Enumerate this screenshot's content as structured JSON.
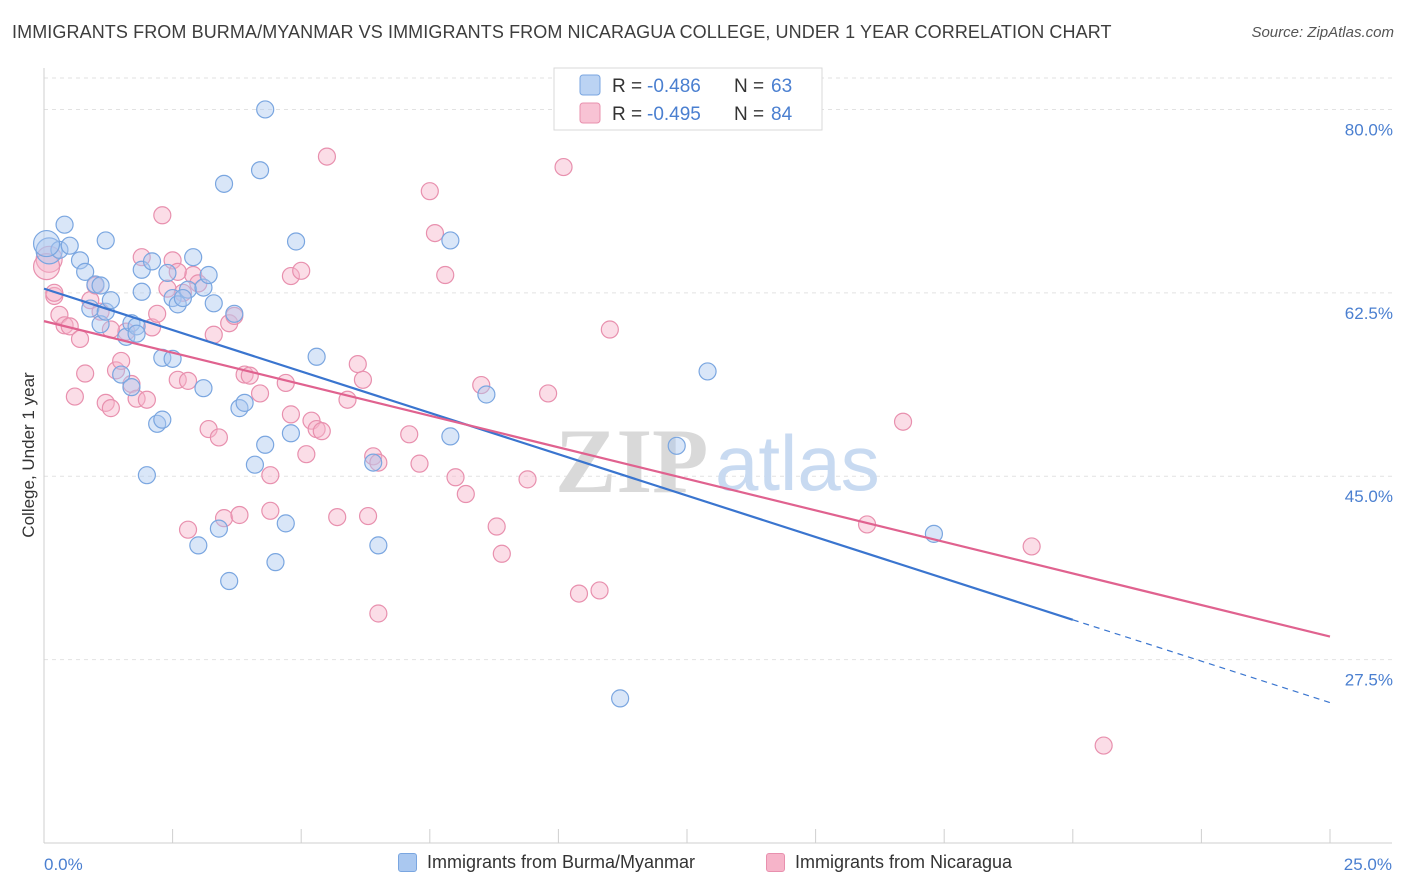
{
  "title": "IMMIGRANTS FROM BURMA/MYANMAR VS IMMIGRANTS FROM NICARAGUA COLLEGE, UNDER 1 YEAR CORRELATION CHART",
  "source": "Source: ZipAtlas.com",
  "watermark": "ZIPatlas",
  "colors": {
    "blue": "#4a7fd0",
    "blue_fill": "#aac8f0",
    "pink": "#e0628f",
    "pink_fill": "#f6b4c9"
  },
  "legend_top": [
    {
      "r_label": "R =",
      "r_value": "-0.486",
      "n_label": "N =",
      "n_value": "63"
    },
    {
      "r_label": "R =",
      "r_value": "-0.495",
      "n_label": "N =",
      "n_value": "84"
    }
  ],
  "legend_bottom": [
    "Immigrants from Burma/Myanmar",
    "Immigrants from Nicaragua"
  ],
  "chart_data": {
    "type": "scatter",
    "title": "IMMIGRANTS FROM BURMA/MYANMAR VS IMMIGRANTS FROM NICARAGUA COLLEGE, UNDER 1 YEAR CORRELATION CHART",
    "xlabel": "",
    "ylabel": "College, Under 1 year",
    "xlim": [
      0,
      25
    ],
    "ylim": [
      10,
      83
    ],
    "x_ticks": [
      "0.0%",
      "25.0%"
    ],
    "y_ticks": [
      {
        "value": 27.5,
        "label": "27.5%"
      },
      {
        "value": 45.0,
        "label": "45.0%"
      },
      {
        "value": 62.5,
        "label": "62.5%"
      },
      {
        "value": 80.0,
        "label": "80.0%"
      }
    ],
    "grid": true,
    "legend_position": "top-center",
    "series": [
      {
        "name": "Immigrants from Burma/Myanmar",
        "color": "#4a7fd0",
        "r": -0.486,
        "n": 63,
        "trend": {
          "x0": 0,
          "y0": 62.9,
          "x1": 20,
          "y1": 31.3,
          "dashed_to_x": 25,
          "dashed_to_y": 23.4
        },
        "points": [
          [
            0.1,
            66.5
          ],
          [
            0.3,
            66.6
          ],
          [
            0.4,
            69.0
          ],
          [
            0.5,
            67.0
          ],
          [
            0.7,
            65.6
          ],
          [
            0.8,
            64.5
          ],
          [
            0.9,
            61.0
          ],
          [
            1.0,
            63.3
          ],
          [
            1.1,
            59.5
          ],
          [
            1.1,
            63.2
          ],
          [
            1.2,
            60.7
          ],
          [
            1.2,
            67.5
          ],
          [
            1.5,
            54.7
          ],
          [
            1.6,
            58.3
          ],
          [
            1.7,
            59.6
          ],
          [
            1.8,
            59.3
          ],
          [
            1.7,
            53.5
          ],
          [
            1.9,
            64.7
          ],
          [
            1.9,
            62.6
          ],
          [
            2.0,
            45.1
          ],
          [
            2.1,
            65.5
          ],
          [
            2.2,
            50.0
          ],
          [
            2.3,
            56.3
          ],
          [
            2.3,
            50.4
          ],
          [
            2.4,
            64.4
          ],
          [
            2.5,
            56.2
          ],
          [
            2.5,
            62.0
          ],
          [
            2.6,
            61.4
          ],
          [
            2.8,
            62.8
          ],
          [
            2.9,
            65.9
          ],
          [
            3.1,
            53.4
          ],
          [
            3.0,
            38.4
          ],
          [
            3.1,
            63.0
          ],
          [
            3.2,
            64.2
          ],
          [
            3.3,
            61.5
          ],
          [
            3.4,
            40.0
          ],
          [
            3.5,
            72.9
          ],
          [
            3.6,
            35.0
          ],
          [
            3.8,
            51.5
          ],
          [
            3.9,
            52.0
          ],
          [
            4.1,
            46.1
          ],
          [
            4.2,
            74.2
          ],
          [
            4.3,
            80.0
          ],
          [
            4.3,
            48.0
          ],
          [
            4.5,
            36.8
          ],
          [
            4.7,
            40.5
          ],
          [
            4.8,
            49.1
          ],
          [
            4.9,
            67.4
          ],
          [
            5.3,
            56.4
          ],
          [
            6.4,
            46.3
          ],
          [
            6.5,
            38.4
          ],
          [
            7.9,
            67.5
          ],
          [
            7.9,
            48.8
          ],
          [
            8.6,
            52.8
          ],
          [
            12.3,
            47.9
          ],
          [
            12.9,
            55.0
          ],
          [
            17.3,
            39.5
          ],
          [
            11.2,
            23.8
          ],
          [
            0.05,
            67.2
          ],
          [
            3.7,
            60.5
          ],
          [
            2.7,
            62.0
          ],
          [
            1.3,
            61.8
          ],
          [
            1.8,
            58.6
          ]
        ]
      },
      {
        "name": "Immigrants from Nicaragua",
        "color": "#e0628f",
        "r": -0.495,
        "n": 84,
        "trend": {
          "x0": 0,
          "y0": 59.8,
          "x1": 25,
          "y1": 29.7
        },
        "points": [
          [
            0.1,
            65.7
          ],
          [
            0.2,
            62.2
          ],
          [
            0.3,
            60.4
          ],
          [
            0.4,
            59.4
          ],
          [
            0.5,
            59.3
          ],
          [
            0.6,
            52.6
          ],
          [
            0.7,
            58.1
          ],
          [
            0.8,
            54.8
          ],
          [
            0.9,
            61.8
          ],
          [
            1.0,
            63.2
          ],
          [
            1.1,
            60.7
          ],
          [
            1.2,
            52.0
          ],
          [
            1.3,
            51.5
          ],
          [
            1.4,
            55.1
          ],
          [
            1.5,
            56.0
          ],
          [
            1.6,
            58.8
          ],
          [
            1.7,
            53.8
          ],
          [
            1.8,
            52.4
          ],
          [
            1.9,
            65.9
          ],
          [
            2.0,
            52.3
          ],
          [
            2.1,
            59.2
          ],
          [
            2.2,
            60.5
          ],
          [
            2.3,
            69.9
          ],
          [
            2.4,
            62.9
          ],
          [
            2.5,
            65.6
          ],
          [
            2.6,
            54.2
          ],
          [
            2.7,
            62.5
          ],
          [
            2.8,
            54.1
          ],
          [
            2.8,
            39.9
          ],
          [
            2.9,
            64.2
          ],
          [
            3.0,
            63.4
          ],
          [
            3.2,
            49.5
          ],
          [
            3.3,
            58.5
          ],
          [
            3.4,
            48.7
          ],
          [
            3.5,
            41.0
          ],
          [
            3.6,
            59.6
          ],
          [
            3.7,
            60.3
          ],
          [
            3.8,
            41.3
          ],
          [
            3.9,
            54.7
          ],
          [
            4.0,
            54.6
          ],
          [
            4.2,
            52.9
          ],
          [
            4.4,
            45.1
          ],
          [
            4.4,
            41.7
          ],
          [
            4.7,
            53.9
          ],
          [
            4.8,
            50.9
          ],
          [
            4.8,
            64.1
          ],
          [
            5.0,
            64.6
          ],
          [
            5.1,
            47.1
          ],
          [
            5.2,
            50.3
          ],
          [
            5.3,
            49.5
          ],
          [
            5.4,
            49.3
          ],
          [
            5.5,
            75.5
          ],
          [
            5.7,
            41.1
          ],
          [
            5.9,
            52.3
          ],
          [
            6.1,
            55.7
          ],
          [
            6.2,
            54.2
          ],
          [
            6.3,
            41.2
          ],
          [
            6.4,
            46.9
          ],
          [
            6.5,
            31.9
          ],
          [
            6.5,
            46.3
          ],
          [
            7.1,
            49.0
          ],
          [
            7.3,
            46.2
          ],
          [
            7.5,
            72.2
          ],
          [
            7.6,
            68.2
          ],
          [
            7.8,
            64.2
          ],
          [
            8.0,
            44.9
          ],
          [
            8.2,
            43.3
          ],
          [
            8.5,
            53.7
          ],
          [
            8.8,
            40.2
          ],
          [
            8.9,
            37.6
          ],
          [
            9.4,
            44.7
          ],
          [
            9.8,
            52.9
          ],
          [
            10.1,
            74.5
          ],
          [
            10.4,
            33.8
          ],
          [
            10.8,
            34.1
          ],
          [
            11.0,
            59.0
          ],
          [
            16.0,
            40.4
          ],
          [
            16.7,
            50.2
          ],
          [
            19.2,
            38.3
          ],
          [
            20.6,
            19.3
          ],
          [
            1.3,
            59.0
          ],
          [
            2.6,
            64.5
          ],
          [
            0.05,
            65.0
          ],
          [
            0.2,
            62.5
          ]
        ]
      }
    ]
  }
}
